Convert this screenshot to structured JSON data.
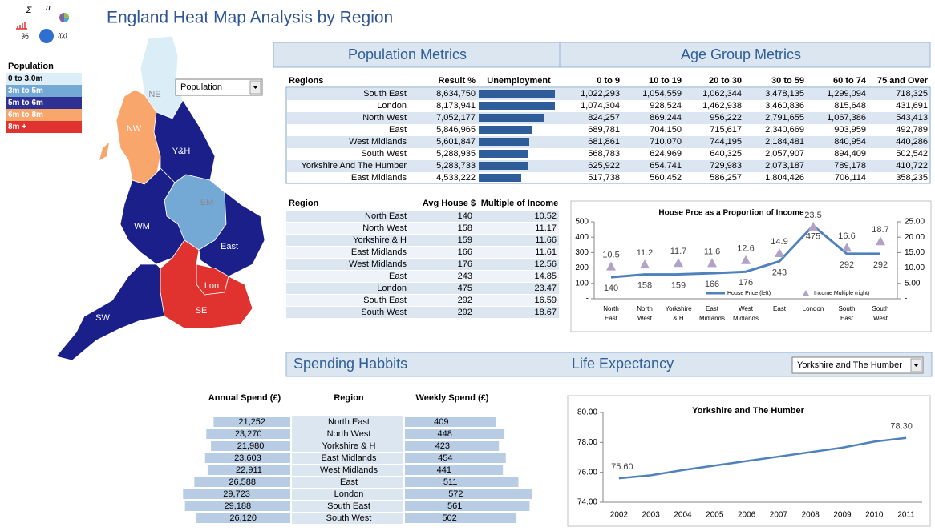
{
  "title": "England Heat Map Analysis by Region",
  "logo": [
    "Σ",
    "π",
    "%",
    "f(x)"
  ],
  "legend": {
    "title": "Population",
    "items": [
      {
        "label": "0 to 3.0m",
        "color": "#dbeef8",
        "text_color": "#000000"
      },
      {
        "label": "3m to 5m",
        "color": "#74a9d6",
        "text_color": "#ffffff"
      },
      {
        "label": "5m to 6m",
        "color": "#2e3192",
        "text_color": "#ffffff"
      },
      {
        "label": "6m to 8m",
        "color": "#f9a66c",
        "text_color": "#ffffff"
      },
      {
        "label": "8m +",
        "color": "#e0322e",
        "text_color": "#ffffff"
      }
    ]
  },
  "map": {
    "dropdown": "Population",
    "regions": [
      {
        "label": "NE",
        "color": "#dbeef8"
      },
      {
        "label": "NW",
        "color": "#f9a66c"
      },
      {
        "label": "Y&H",
        "color": "#1a1f8a"
      },
      {
        "label": "EM",
        "color": "#74a9d6"
      },
      {
        "label": "WM",
        "color": "#1a1f8a"
      },
      {
        "label": "East",
        "color": "#1a1f8a"
      },
      {
        "label": "Lon",
        "color": "#e0322e"
      },
      {
        "label": "SE",
        "color": "#e0322e"
      },
      {
        "label": "SW",
        "color": "#1a1f8a"
      }
    ]
  },
  "population": {
    "title": "Population Metrics",
    "age_title": "Age Group Metrics",
    "columns": [
      "Regions",
      "Result %",
      "Unemployment",
      "0 to 9",
      "10 to 19",
      "20 to 30",
      "30 to 59",
      "60 to 74",
      "75 and Over"
    ],
    "rows": [
      [
        "South East",
        "8,634,750",
        "1,022,293",
        "1,054,559",
        "1,062,344",
        "3,478,135",
        "1,299,094",
        "718,325"
      ],
      [
        "London",
        "8,173,941",
        "1,074,304",
        "928,524",
        "1,462,938",
        "3,460,836",
        "815,648",
        "431,691"
      ],
      [
        "North West",
        "7,052,177",
        "824,257",
        "869,244",
        "956,222",
        "2,791,655",
        "1,067,386",
        "543,413"
      ],
      [
        "East",
        "5,846,965",
        "689,781",
        "704,150",
        "715,617",
        "2,340,669",
        "903,959",
        "492,789"
      ],
      [
        "West Midlands",
        "5,601,847",
        "681,861",
        "710,070",
        "744,195",
        "2,184,481",
        "840,954",
        "440,286"
      ],
      [
        "South West",
        "5,288,935",
        "568,783",
        "624,969",
        "640,325",
        "2,057,907",
        "894,409",
        "502,542"
      ],
      [
        "Yorkshire And The Humber",
        "5,283,733",
        "625,922",
        "654,741",
        "729,983",
        "2,073,187",
        "789,178",
        "410,722"
      ],
      [
        "East Midlands",
        "4,533,222",
        "517,738",
        "560,452",
        "586,257",
        "1,804,426",
        "706,114",
        "358,235"
      ]
    ],
    "unemployment": [
      95,
      95,
      82,
      67,
      63,
      61,
      61,
      53
    ],
    "xlim": [
      0,
      100
    ],
    "bar_color": "#2e5d9a"
  },
  "house_table": {
    "columns": [
      "Region",
      "Avg House $",
      "Multiple of Income"
    ],
    "rows": [
      [
        "North East",
        "140",
        "10.52"
      ],
      [
        "North West",
        "158",
        "11.17"
      ],
      [
        "Yorkshire & H",
        "159",
        "11.66"
      ],
      [
        "East Midlands",
        "166",
        "11.61"
      ],
      [
        "West Midlands",
        "176",
        "12.56"
      ],
      [
        "East",
        "243",
        "14.85"
      ],
      [
        "London",
        "475",
        "23.47"
      ],
      [
        "South East",
        "292",
        "16.59"
      ],
      [
        "South West",
        "292",
        "18.67"
      ]
    ]
  },
  "house_chart": {
    "type": "line",
    "title": "House Prce as a Proportion of Income",
    "categories": [
      "North East",
      "North West",
      "Yorkshire & H",
      "East Midlands",
      "West Midlands",
      "East",
      "London",
      "South East",
      "South West"
    ],
    "series": [
      {
        "name": "House Price (left)",
        "color": "#4f81bd",
        "values": [
          140,
          158,
          159,
          166,
          176,
          243,
          475,
          292,
          292
        ]
      },
      {
        "name": "Income Multiple (right)",
        "color": "#b3a2c7",
        "axis": "y2",
        "marker": "triangle",
        "values": [
          10.52,
          11.17,
          11.66,
          11.61,
          12.56,
          14.85,
          23.47,
          16.59,
          18.67
        ],
        "value_labels": [
          "10.5",
          "11.2",
          "11.7",
          "11.6",
          "12.6",
          "14.9",
          "23.5",
          "16.6",
          "18.7"
        ]
      }
    ],
    "ylim": [
      0,
      500
    ],
    "yticks": [
      {
        "value": 0,
        "label": "-"
      },
      100,
      200,
      300,
      400,
      500
    ],
    "y2lim": [
      0,
      25
    ],
    "y2ticks": [
      {
        "value": 0,
        "label": "-"
      },
      {
        "value": 5,
        "label": "5.00"
      },
      {
        "value": 10,
        "label": "10.00"
      },
      {
        "value": 15,
        "label": "15.00"
      },
      {
        "value": 20,
        "label": "20.00"
      },
      {
        "value": 25,
        "label": "25.00"
      }
    ],
    "legend": "bottom"
  },
  "spending": {
    "title": "Spending Habbits",
    "columns": [
      "Annual Spend (£)",
      "Region",
      "Weekly Spend (£)"
    ],
    "regions": [
      "North East",
      "North West",
      "Yorkshire & H",
      "East Midlands",
      "West Midlands",
      "East",
      "London",
      "South East",
      "South West"
    ],
    "annual": [
      21252,
      23270,
      21980,
      23603,
      22911,
      26588,
      29723,
      29188,
      26120
    ],
    "annual_labels": [
      "21,252",
      "23,270",
      "21,980",
      "23,603",
      "22,911",
      "26,588",
      "29,723",
      "29,188",
      "26,120"
    ],
    "weekly": [
      409,
      448,
      423,
      454,
      441,
      511,
      572,
      561,
      502
    ],
    "bar_color": "#b8cce4"
  },
  "life": {
    "title": "Life Expectancy",
    "dropdown": "Yorkshire and The Humber",
    "chart": {
      "type": "line",
      "title": "Yorkshire and The Humber",
      "categories": [
        "2002",
        "2003",
        "2004",
        "2005",
        "2006",
        "2007",
        "2008",
        "2009",
        "2010",
        "2011"
      ],
      "values": [
        75.6,
        75.8,
        76.15,
        76.45,
        76.75,
        77.05,
        77.35,
        77.65,
        78.05,
        78.3
      ],
      "value_labels": [
        "75.60",
        null,
        null,
        null,
        null,
        null,
        null,
        null,
        null,
        "78.30"
      ],
      "color": "#4f81bd",
      "ylim": [
        74,
        80
      ],
      "yticks": [
        {
          "value": 74,
          "label": "74.00"
        },
        {
          "value": 76,
          "label": "76.00"
        },
        {
          "value": 78,
          "label": "78.00"
        },
        {
          "value": 80,
          "label": "80.00"
        }
      ]
    }
  }
}
